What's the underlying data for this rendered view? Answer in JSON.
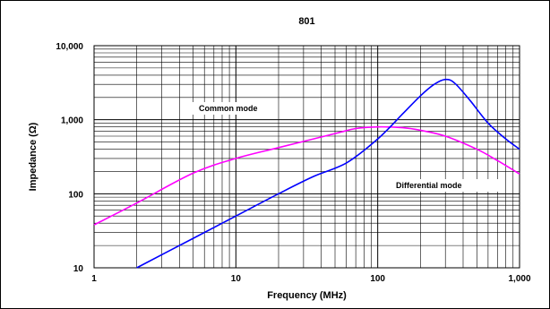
{
  "chart_data": {
    "type": "line",
    "title": "801",
    "xlabel": "Frequency (MHz)",
    "ylabel": "Impedance (Ω)",
    "x_scale": "log",
    "y_scale": "log",
    "xlim": [
      1,
      1000
    ],
    "ylim": [
      10,
      10000
    ],
    "x_ticks": [
      1,
      10,
      100,
      1000
    ],
    "x_tick_labels": [
      "1",
      "10",
      "100",
      "1,000"
    ],
    "y_ticks": [
      10,
      100,
      1000,
      10000
    ],
    "y_tick_labels": [
      "10",
      "100",
      "1,000",
      "10,000"
    ],
    "grid": true,
    "annotations": {
      "common_mode": "Common mode",
      "differential_mode": "Differential mode"
    },
    "series": [
      {
        "name": "Common mode",
        "color": "#ff00ff",
        "x": [
          1,
          2,
          5,
          10,
          20,
          50,
          70,
          100,
          150,
          200,
          300,
          500,
          700,
          1000
        ],
        "y": [
          38,
          75,
          190,
          300,
          420,
          650,
          760,
          800,
          780,
          720,
          600,
          400,
          280,
          185
        ]
      },
      {
        "name": "Differential mode",
        "color": "#0000ff",
        "x": [
          2,
          5,
          10,
          20,
          35,
          60,
          100,
          150,
          200,
          250,
          300,
          350,
          450,
          600,
          800,
          1000
        ],
        "y": [
          10,
          25,
          50,
          100,
          170,
          260,
          550,
          1200,
          2100,
          3000,
          3500,
          3100,
          1800,
          900,
          550,
          400
        ]
      }
    ]
  }
}
